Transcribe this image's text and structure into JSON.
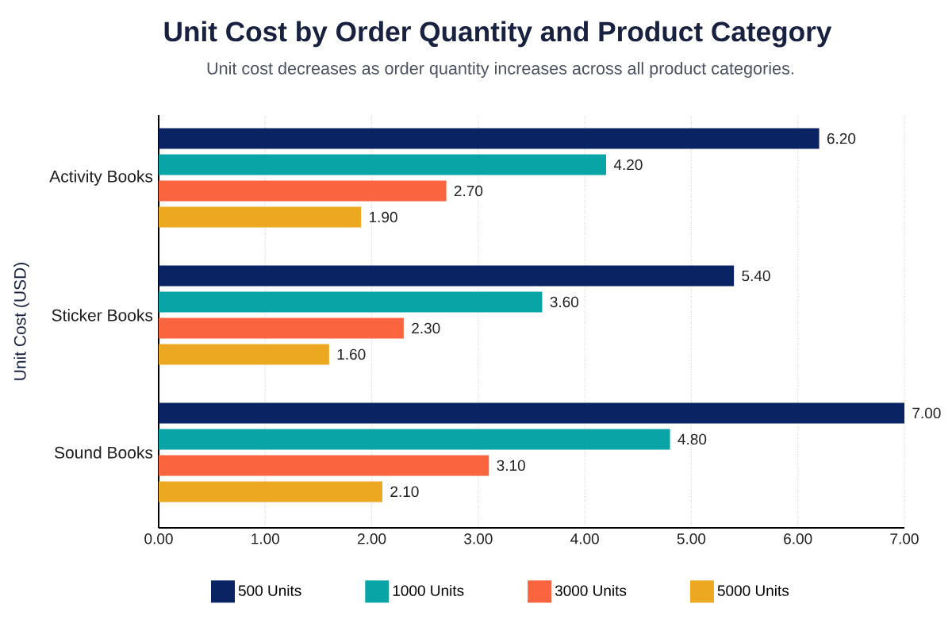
{
  "chart_data": {
    "type": "bar",
    "orientation": "horizontal",
    "title": "Unit Cost by Order Quantity and Product Category",
    "subtitle": "Unit cost decreases as order quantity increases across all product categories.",
    "ylabel": "Unit Cost (USD)",
    "categories": [
      "Activity Books",
      "Sticker Books",
      "Sound Books"
    ],
    "series": [
      {
        "name": "500 Units",
        "color": "#0a2463",
        "values": [
          6.2,
          5.4,
          7.0
        ],
        "value_labels": [
          "6.20",
          "5.40",
          "7.00"
        ]
      },
      {
        "name": "1000 Units",
        "color": "#08a4a6",
        "values": [
          4.2,
          3.6,
          4.8
        ],
        "value_labels": [
          "4.20",
          "3.60",
          "4.80"
        ]
      },
      {
        "name": "3000 Units",
        "color": "#fa6540",
        "values": [
          2.7,
          2.3,
          3.1
        ],
        "value_labels": [
          "2.70",
          "2.30",
          "3.10"
        ]
      },
      {
        "name": "5000 Units",
        "color": "#eca821",
        "values": [
          1.9,
          1.6,
          2.1
        ],
        "value_labels": [
          "1.90",
          "1.60",
          "2.10"
        ]
      }
    ],
    "xlim": [
      0,
      7
    ],
    "xticks": [
      {
        "value": 0,
        "label": "0.00"
      },
      {
        "value": 1,
        "label": "1.00"
      },
      {
        "value": 2,
        "label": "2.00"
      },
      {
        "value": 3,
        "label": "3.00"
      },
      {
        "value": 4,
        "label": "4.00"
      },
      {
        "value": 5,
        "label": "5.00"
      },
      {
        "value": 6,
        "label": "6.00"
      },
      {
        "value": 7,
        "label": "7.00"
      }
    ],
    "grid": "x",
    "legend": "bottom"
  }
}
